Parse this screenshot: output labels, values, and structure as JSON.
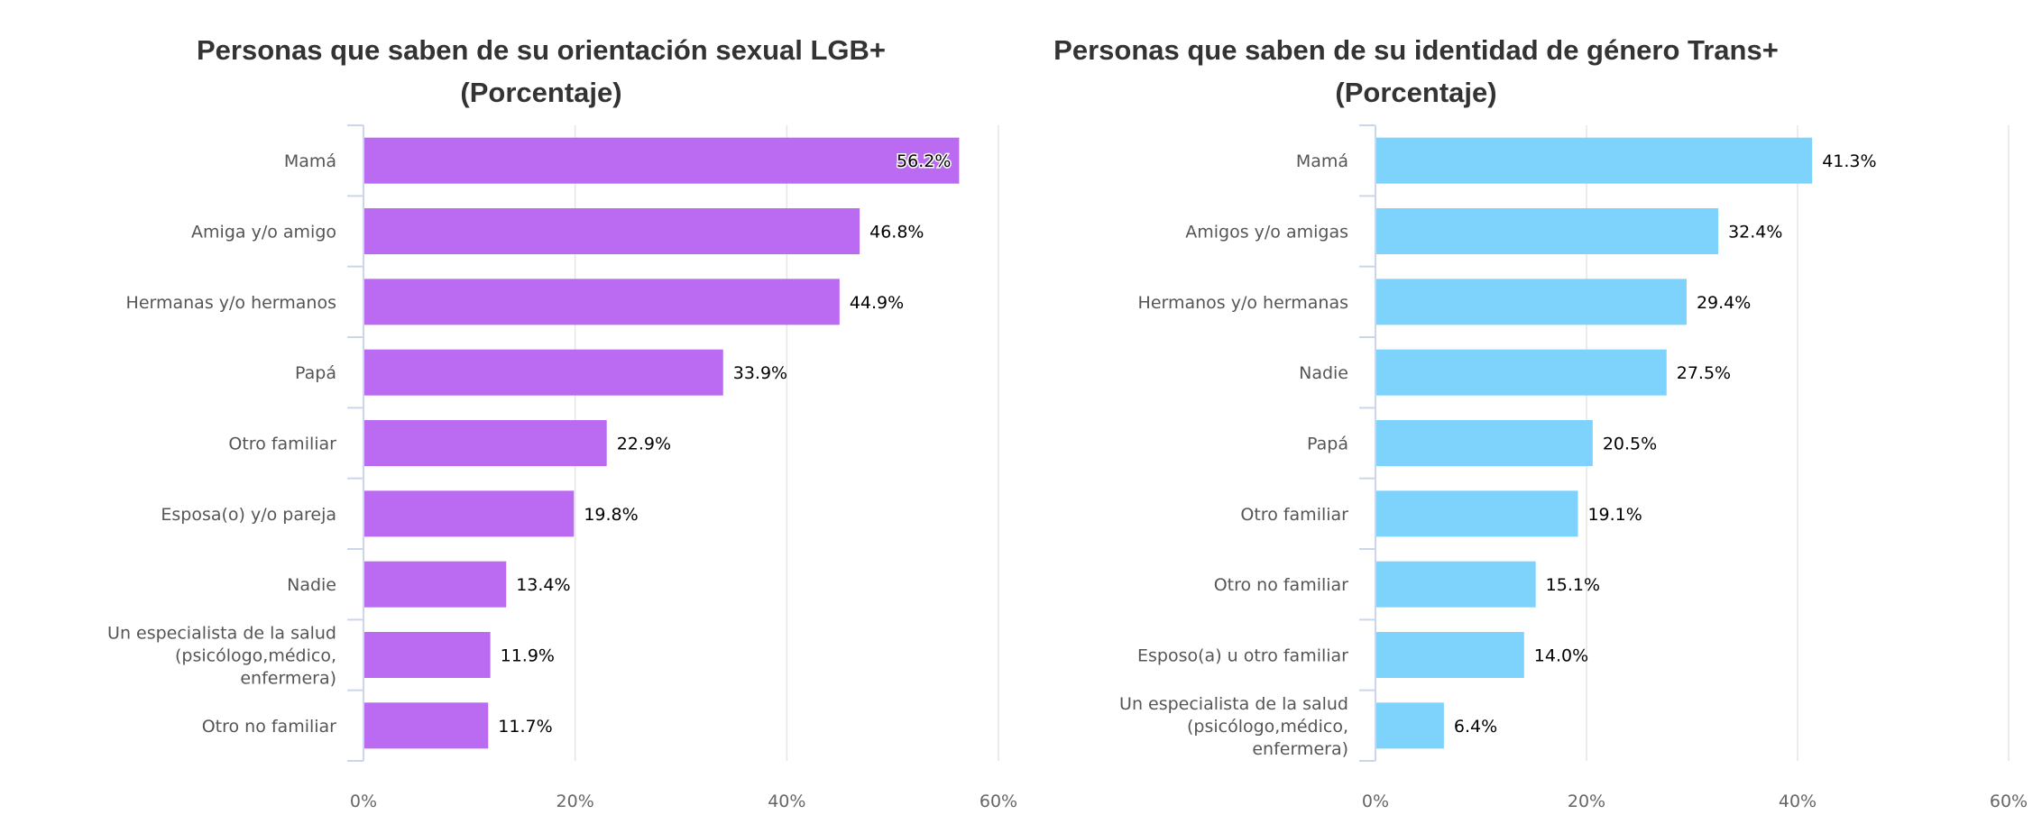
{
  "chart_data": [
    {
      "type": "bar",
      "orientation": "horizontal",
      "title": [
        "Personas que saben de su orientación sexual LGB+",
        "(Porcentaje)"
      ],
      "categories": [
        "Mamá",
        "Amiga y/o amigo",
        "Hermanas y/o hermanos",
        "Papá",
        "Otro familiar",
        "Esposa(o) y/o pareja",
        "Nadie",
        "Un especialista de la salud|(psicólogo,médico,|enfermera)",
        "Otro no familiar"
      ],
      "values": [
        56.2,
        46.8,
        44.9,
        33.9,
        22.9,
        19.8,
        13.4,
        11.9,
        11.7
      ],
      "data_labels": [
        "56.2%",
        "46.8%",
        "44.9%",
        "33.9%",
        "22.9%",
        "19.8%",
        "13.4%",
        "11.9%",
        "11.7%"
      ],
      "xlim": [
        0,
        60
      ],
      "xticks": [
        "0%",
        "20%",
        "40%",
        "60%"
      ],
      "grid": true,
      "color": "#bb6bf2"
    },
    {
      "type": "bar",
      "orientation": "horizontal",
      "title": [
        "Personas que saben de su identidad de género Trans+",
        "(Porcentaje)"
      ],
      "categories": [
        "Mamá",
        "Amigos y/o amigas",
        "Hermanos y/o hermanas",
        "Nadie",
        "Papá",
        "Otro familiar",
        "Otro no familiar",
        "Esposo(a) u otro familiar",
        "Un especialista de la salud|(psicólogo,médico,|enfermera)"
      ],
      "values": [
        41.3,
        32.4,
        29.4,
        27.5,
        20.5,
        19.1,
        15.1,
        14.0,
        6.4
      ],
      "data_labels": [
        "41.3%",
        "32.4%",
        "29.4%",
        "27.5%",
        "20.5%",
        "19.1%",
        "15.1%",
        "14.0%",
        "6.4%"
      ],
      "xlim": [
        0,
        60
      ],
      "xticks": [
        "0%",
        "20%",
        "40%",
        "60%"
      ],
      "grid": true,
      "color": "#7dd3fc"
    }
  ]
}
